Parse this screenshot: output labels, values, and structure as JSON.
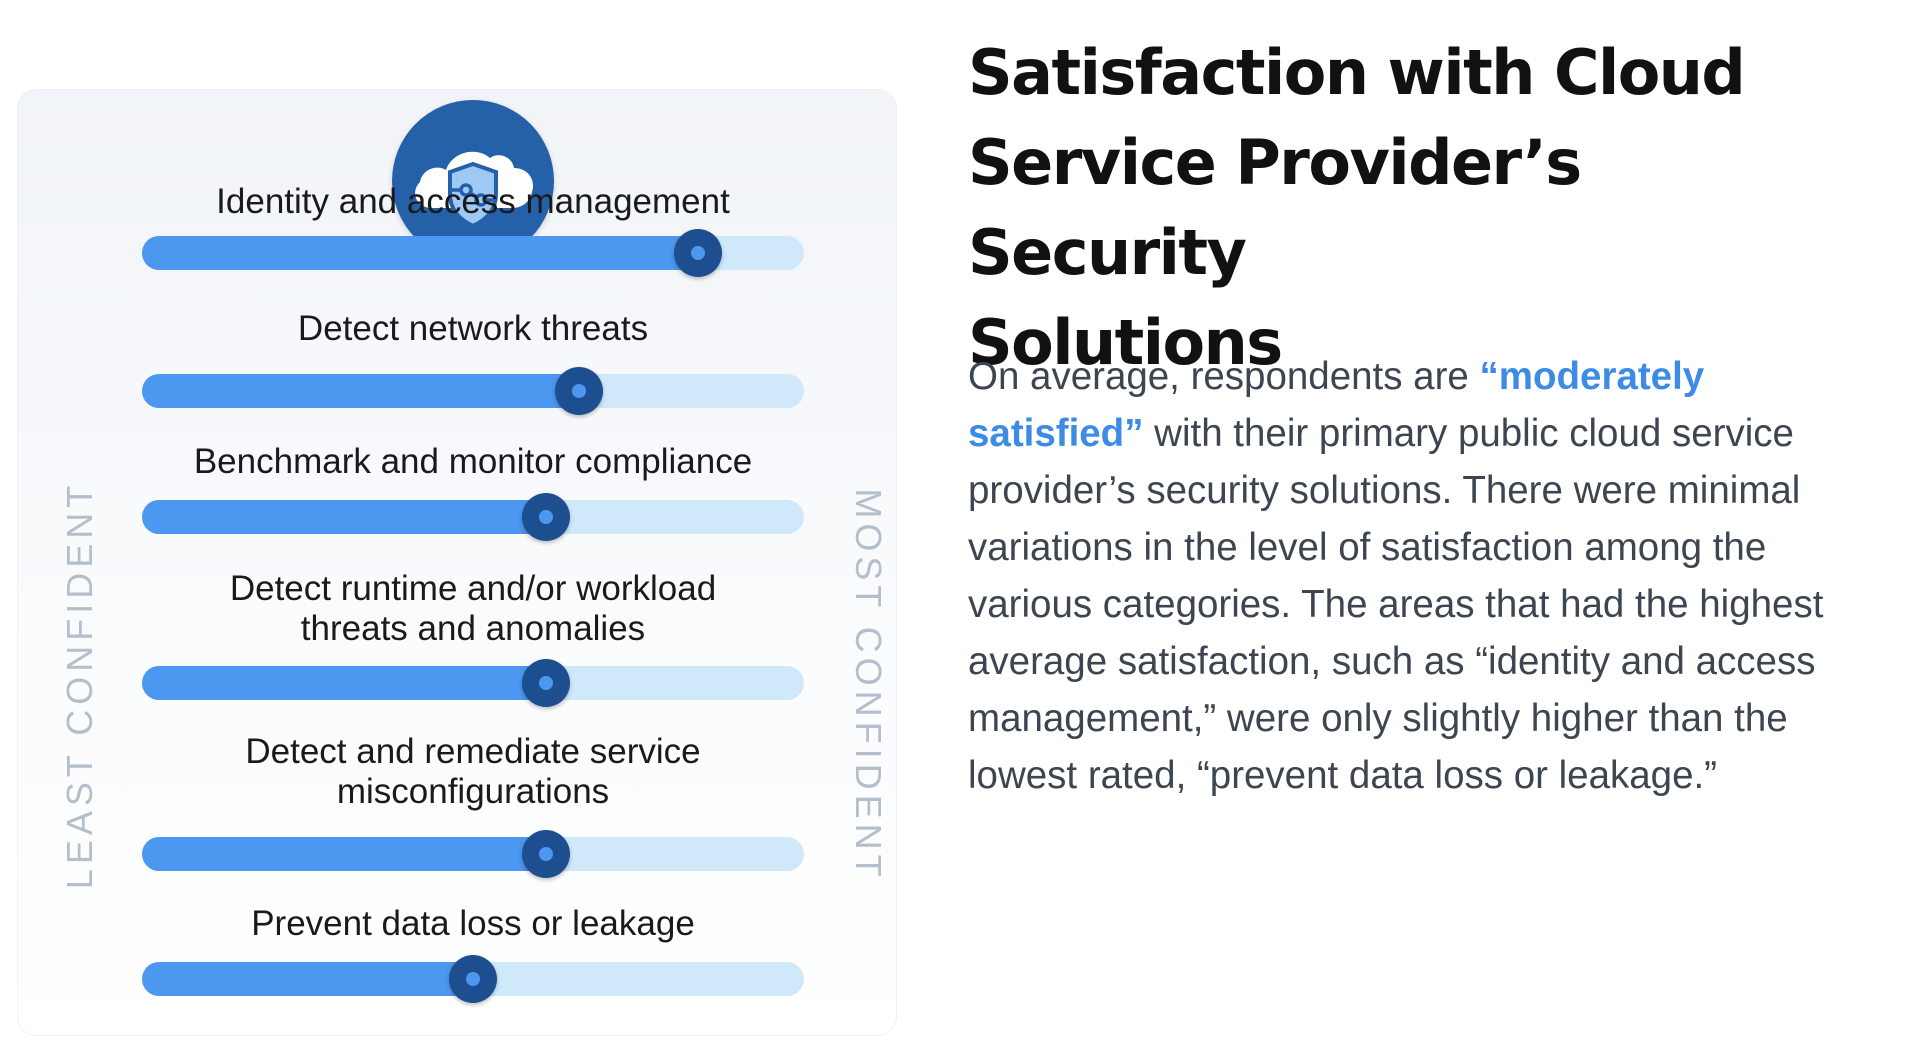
{
  "title_lines": [
    "Satisfaction with Cloud",
    "Service Provider’s Security",
    "Solutions"
  ],
  "body": {
    "line1_prefix": "On average, respondents are ",
    "highlight_part1": "“moderately",
    "highlight_part2": "satisfied”",
    "line2_suffix": " with their primary public cloud service",
    "lines": [
      "provider’s security solutions. There were minimal",
      "variations in the level of satisfaction among the",
      "various categories. The areas that had the highest",
      "average satisfaction, such as “identity and access",
      "management,” were only slightly higher than the",
      "lowest rated, “prevent data loss or leakage.”"
    ]
  },
  "icon": "cloud-shield-icon",
  "colors": {
    "badge": "#2461a8",
    "fill": "#4c97ef",
    "track": "#cfe9fb",
    "knob": "#1d4e8f",
    "highlight": "#3e8be6"
  },
  "chart_data": {
    "type": "bar",
    "orientation": "horizontal",
    "scale_min_label": "LEAST CONFIDENT",
    "scale_max_label": "MOST CONFIDENT",
    "xlim": [
      0,
      1
    ],
    "categories": [
      [
        "Identity and access management"
      ],
      [
        "Detect network threats"
      ],
      [
        "Benchmark and monitor compliance"
      ],
      [
        "Detect runtime and/or workload",
        "threats and anomalies"
      ],
      [
        "Detect and remediate service",
        "misconfigurations"
      ],
      [
        "Prevent data loss or leakage"
      ]
    ],
    "values": [
      0.84,
      0.66,
      0.61,
      0.61,
      0.61,
      0.5
    ]
  }
}
